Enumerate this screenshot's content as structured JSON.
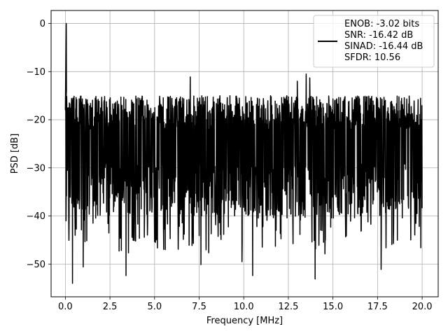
{
  "chart_data": {
    "type": "line",
    "xlabel": "Frequency [MHz]",
    "ylabel": "PSD [dB]",
    "xlim": [
      -0.8,
      20.9
    ],
    "ylim": [
      -56.8,
      2.7
    ],
    "xticks": [
      0.0,
      2.5,
      5.0,
      7.5,
      10.0,
      12.5,
      15.0,
      17.5,
      20.0
    ],
    "xtick_labels": [
      "0.0",
      "2.5",
      "5.0",
      "7.5",
      "10.0",
      "12.5",
      "15.0",
      "17.5",
      "20.0"
    ],
    "yticks": [
      0,
      -10,
      -20,
      -30,
      -40,
      -50
    ],
    "ytick_labels": [
      "0",
      "−10",
      "−20",
      "−30",
      "−40",
      "−50"
    ],
    "grid": true,
    "legend_position": "top-right",
    "legend_lines": [
      "ENOB: -3.02 bits",
      "SNR: -16.42 dB",
      "SINAD: -16.44 dB",
      "SFDR: 10.56"
    ],
    "series": [
      {
        "color": "#000000",
        "x_start": 0.0,
        "x_end": 20.0,
        "noise_floor_db": -25,
        "peak": {
          "x": 0.05,
          "y": 0.0
        },
        "notable_points": [
          {
            "x": 0.4,
            "y": -54.0
          },
          {
            "x": 1.0,
            "y": -50.6
          },
          {
            "x": 3.4,
            "y": -52.4
          },
          {
            "x": 7.6,
            "y": -50.1
          },
          {
            "x": 9.9,
            "y": -49.5
          },
          {
            "x": 10.5,
            "y": -52.4
          },
          {
            "x": 14.0,
            "y": -53.1
          },
          {
            "x": 17.7,
            "y": -51.1
          },
          {
            "x": 7.0,
            "y": -11.1
          },
          {
            "x": 13.5,
            "y": -10.5
          },
          {
            "x": 13.7,
            "y": -11.3
          },
          {
            "x": 13.0,
            "y": -12.0
          }
        ]
      }
    ]
  }
}
